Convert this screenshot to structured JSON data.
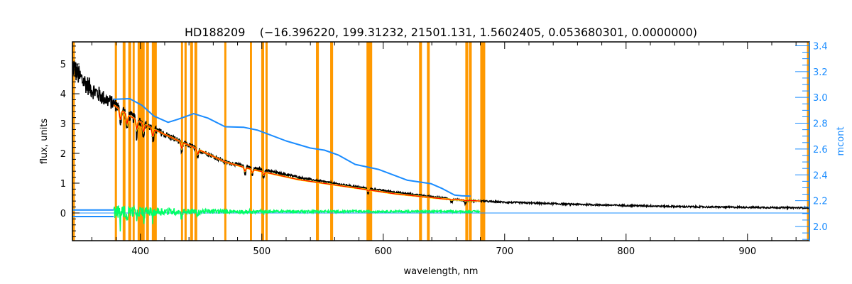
{
  "chart_data": {
    "type": "line",
    "title": "HD188209    (−16.396220, 199.31232, 21501.131, 1.5602405, 0.053680301, 0.0000000)",
    "xlabel": "wavelength, nm",
    "ylabel": "flux, units",
    "y2label": "mcont",
    "xlim": [
      344,
      951
    ],
    "ylim": [
      -0.93,
      5.74
    ],
    "y2lim": [
      1.89,
      3.43
    ],
    "xticks": [
      "400",
      "500",
      "600",
      "700",
      "800",
      "900"
    ],
    "yticks": [
      "0",
      "1",
      "2",
      "3",
      "4",
      "5"
    ],
    "y2ticks": [
      "2.0",
      "2.2",
      "2.4",
      "2.6",
      "2.8",
      "3.0",
      "3.2",
      "3.4"
    ],
    "grid": false,
    "colors": {
      "spectrum": "#000000",
      "model": "#ff0000",
      "residual": "#00ff66",
      "mcont": "#1a8cff",
      "masks": "#ff9900",
      "fit": "#ffff00"
    },
    "masked_regions_nm": [
      [
        344,
        346
      ],
      [
        378.9,
        380.7
      ],
      [
        385.4,
        387.7
      ],
      [
        390.0,
        392.4
      ],
      [
        393.6,
        395.3
      ],
      [
        397.7,
        403.5
      ],
      [
        404.7,
        407.0
      ],
      [
        409.4,
        413.5
      ],
      [
        433.4,
        435.1
      ],
      [
        436.3,
        438.1
      ],
      [
        441.0,
        443.3
      ],
      [
        444.5,
        446.8
      ],
      [
        469.1,
        470.8
      ],
      [
        490.2,
        491.9
      ],
      [
        499.5,
        501.9
      ],
      [
        503.0,
        504.8
      ],
      [
        544.6,
        547.0
      ],
      [
        556.3,
        558.7
      ],
      [
        586.2,
        590.9
      ],
      [
        629.5,
        631.9
      ],
      [
        636.0,
        638.3
      ],
      [
        667.6,
        669.9
      ],
      [
        670.5,
        672.9
      ],
      [
        679.9,
        684.0
      ],
      [
        949,
        951
      ]
    ],
    "series": [
      {
        "name": "observed flux (continuum trend)",
        "axis": "left",
        "x": [
          344,
          350,
          360,
          370,
          380,
          391,
          401,
          411,
          430,
          444,
          470,
          497,
          540,
          577,
          620,
          665,
          700,
          750,
          800,
          850,
          900,
          951
        ],
        "y": [
          4.95,
          4.55,
          4.15,
          3.85,
          3.62,
          3.26,
          3.05,
          2.81,
          2.45,
          2.2,
          1.71,
          1.48,
          1.12,
          0.88,
          0.64,
          0.43,
          0.36,
          0.3,
          0.25,
          0.21,
          0.19,
          0.17
        ]
      },
      {
        "name": "model fit",
        "axis": "left",
        "x": [
          378,
          391,
          411,
          430,
          444,
          470,
          490,
          530,
          570,
          610,
          650,
          680
        ],
        "y": [
          3.62,
          3.26,
          2.81,
          2.45,
          2.2,
          1.71,
          1.48,
          1.12,
          0.88,
          0.64,
          0.47,
          0.4
        ]
      },
      {
        "name": "residual",
        "axis": "left",
        "x": [
          378,
          680
        ],
        "y": [
          0,
          0
        ]
      },
      {
        "name": "mcont",
        "axis": "right",
        "x": [
          377.8,
          391.2,
          401.2,
          411.1,
          422.8,
          430.4,
          443.9,
          455.6,
          469.7,
          484.9,
          496.6,
          520.0,
          539.9,
          551.6,
          563.3,
          576.8,
          596.1,
          619.6,
          639.5,
          648.8,
          658.8,
          664.6,
          672
        ],
        "y": [
          2.985,
          2.99,
          2.939,
          2.856,
          2.807,
          2.829,
          2.874,
          2.84,
          2.773,
          2.769,
          2.746,
          2.663,
          2.608,
          2.591,
          2.552,
          2.481,
          2.442,
          2.359,
          2.331,
          2.293,
          2.243,
          2.238,
          2.235
        ]
      }
    ],
    "absorption_lines_nm": [
      383.5,
      388.9,
      397.0,
      402.6,
      410.2,
      434.0,
      447.1,
      486.1,
      492.2,
      501.6,
      587.6,
      656.3,
      667.8
    ]
  }
}
